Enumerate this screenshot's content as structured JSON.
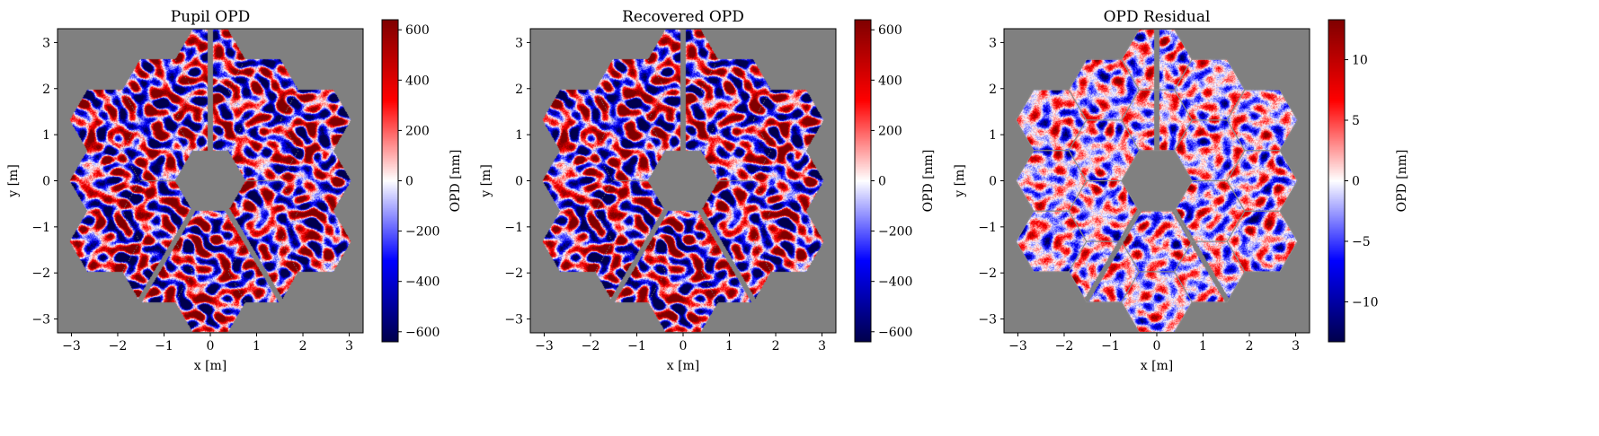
{
  "chart_data": [
    {
      "type": "heatmap",
      "title": "Pupil OPD",
      "xlabel": "x [m]",
      "ylabel": "y [m]",
      "xlim": [
        -3.3,
        3.3
      ],
      "ylim": [
        -3.3,
        3.3
      ],
      "xticks": [
        -3,
        -2,
        -1,
        0,
        1,
        2,
        3
      ],
      "yticks": [
        -3,
        -2,
        -1,
        0,
        1,
        2,
        3
      ],
      "colorbar": {
        "label": "OPD [nm]",
        "range": [
          -640,
          640
        ],
        "ticks": [
          -600,
          -400,
          -200,
          0,
          200,
          400,
          600
        ],
        "colormap": "seismic"
      },
      "background_color": "#808080",
      "segment_outlines": false,
      "noise_amplitude": 0.75,
      "seed": 11
    },
    {
      "type": "heatmap",
      "title": "Recovered OPD",
      "xlabel": "x [m]",
      "ylabel": "y [m]",
      "xlim": [
        -3.3,
        3.3
      ],
      "ylim": [
        -3.3,
        3.3
      ],
      "xticks": [
        -3,
        -2,
        -1,
        0,
        1,
        2,
        3
      ],
      "yticks": [
        -3,
        -2,
        -1,
        0,
        1,
        2,
        3
      ],
      "colorbar": {
        "label": "OPD [nm]",
        "range": [
          -640,
          640
        ],
        "ticks": [
          -600,
          -400,
          -200,
          0,
          200,
          400,
          600
        ],
        "colormap": "seismic"
      },
      "background_color": "#808080",
      "segment_outlines": false,
      "noise_amplitude": 0.75,
      "seed": 11
    },
    {
      "type": "heatmap",
      "title": "OPD Residual",
      "xlabel": "x [m]",
      "ylabel": "y [m]",
      "xlim": [
        -3.3,
        3.3
      ],
      "ylim": [
        -3.3,
        3.3
      ],
      "xticks": [
        -3,
        -2,
        -1,
        0,
        1,
        2,
        3
      ],
      "yticks": [
        -3,
        -2,
        -1,
        0,
        1,
        2,
        3
      ],
      "colorbar": {
        "label": "OPD [nm]",
        "range": [
          -13.3,
          13.3
        ],
        "ticks": [
          -10,
          -5,
          0,
          5,
          10
        ],
        "colormap": "seismic"
      },
      "background_color": "#808080",
      "segment_outlines": true,
      "noise_amplitude": 0.35,
      "seed": 29
    }
  ]
}
